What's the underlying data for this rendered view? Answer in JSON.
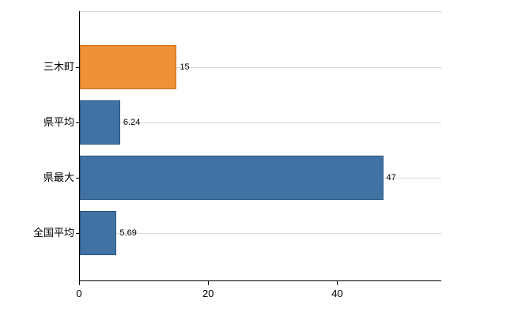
{
  "chart_data": {
    "type": "bar",
    "orientation": "horizontal",
    "title": "",
    "xlabel": "",
    "ylabel": "",
    "categories": [
      "三木町",
      "県平均",
      "県最大",
      "全国平均"
    ],
    "values": [
      15,
      6.24,
      47,
      5.69
    ],
    "value_labels": [
      "15",
      "6.24",
      "47",
      "5.69"
    ],
    "bar_colors": [
      "#ef9138",
      "#4172a4",
      "#4172a4",
      "#4172a4"
    ],
    "bar_border_colors": [
      "#c9711f",
      "#2e557f",
      "#2e557f",
      "#2e557f"
    ],
    "xlim": [
      0,
      56
    ],
    "x_ticks": [
      "0",
      "20",
      "40"
    ],
    "x_tick_values": [
      0,
      20,
      40
    ],
    "grid": "light horizontal lines at category centers and plot top",
    "legend": "none",
    "axis_color": "#000000",
    "grid_color": "#d9d9d9",
    "background_color": "#ffffff"
  }
}
